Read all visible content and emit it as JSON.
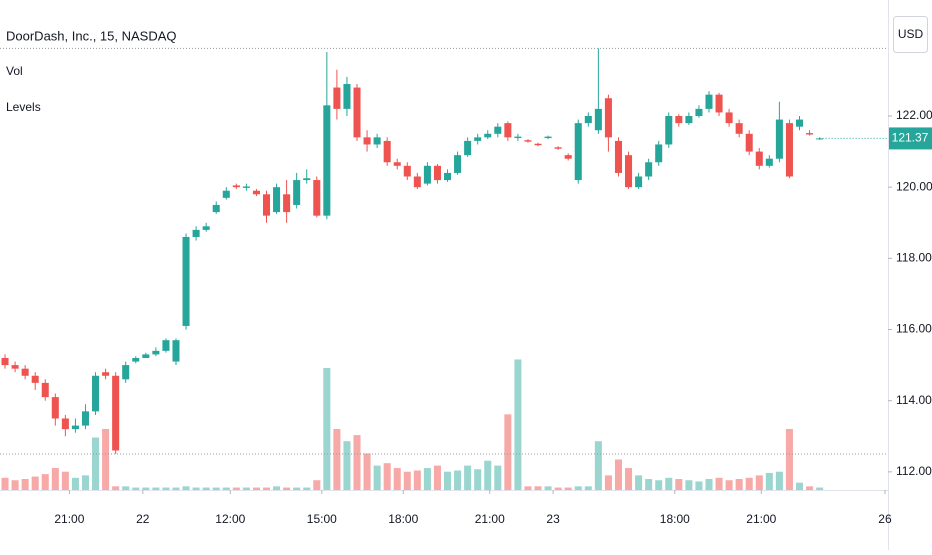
{
  "chart_data": {
    "type": "candlestick",
    "title": "DoorDash, Inc., 15, NASDAQ",
    "indicators": [
      "Vol",
      "Levels"
    ],
    "currency": "USD",
    "up_color": "#26a69a",
    "down_color": "#ef5350",
    "volume_up_color": "#9ad6cf",
    "volume_down_color": "#f7a9a7",
    "open": [
      115.2,
      115.0,
      114.9,
      114.7,
      114.5,
      114.1,
      113.5,
      113.2,
      113.3,
      113.7,
      114.8,
      114.7,
      114.6,
      115.1,
      115.2,
      115.3,
      115.4,
      115.1,
      116.1,
      118.6,
      118.8,
      119.3,
      119.7,
      120.05,
      119.98,
      119.9,
      119.8,
      119.3,
      119.8,
      119.5,
      120.2,
      120.2,
      119.2,
      122.8,
      122.2,
      122.8,
      121.4,
      121.2,
      121.3,
      120.7,
      120.6,
      120.3,
      120.1,
      120.6,
      120.2,
      120.4,
      120.9,
      121.3,
      121.4,
      121.5,
      121.8,
      121.38,
      121.32,
      121.22,
      121.38,
      121.12,
      120.9,
      120.2,
      121.8,
      121.6,
      122.5,
      121.3,
      120.9,
      120.0,
      120.3,
      120.7,
      121.2,
      122.0,
      121.8,
      122.0,
      122.2,
      122.6,
      122.1,
      121.8,
      121.5,
      121.0,
      120.6,
      120.8,
      121.8,
      121.7,
      121.52,
      121.35
    ],
    "high": [
      115.3,
      115.1,
      115.0,
      114.8,
      114.6,
      114.2,
      113.6,
      113.5,
      113.9,
      114.8,
      114.9,
      114.8,
      115.1,
      115.25,
      115.35,
      115.5,
      115.75,
      115.75,
      118.7,
      118.9,
      119.0,
      119.6,
      120.0,
      120.1,
      120.1,
      119.95,
      119.9,
      120.1,
      120.2,
      120.4,
      120.5,
      120.3,
      123.8,
      123.3,
      123.1,
      122.9,
      121.6,
      121.5,
      121.4,
      120.8,
      120.7,
      120.4,
      120.7,
      120.65,
      120.5,
      121.0,
      121.4,
      121.5,
      121.6,
      121.8,
      121.85,
      121.5,
      121.35,
      121.25,
      121.45,
      121.15,
      120.95,
      121.9,
      122.1,
      123.9,
      122.6,
      121.4,
      121.0,
      120.4,
      120.8,
      121.3,
      122.1,
      122.05,
      122.1,
      122.3,
      122.7,
      122.65,
      122.2,
      121.9,
      121.6,
      121.1,
      120.9,
      122.4,
      121.9,
      122.0,
      121.6,
      121.4
    ],
    "low": [
      114.9,
      114.8,
      114.6,
      114.3,
      114.0,
      113.3,
      113.0,
      113.1,
      113.2,
      113.6,
      114.6,
      112.5,
      114.5,
      115.05,
      115.2,
      115.25,
      115.35,
      115.0,
      116.0,
      118.5,
      118.75,
      119.25,
      119.65,
      119.95,
      119.9,
      119.75,
      119.0,
      119.25,
      119.0,
      119.4,
      120.1,
      119.15,
      119.1,
      121.9,
      122.0,
      121.3,
      121.0,
      121.1,
      120.6,
      120.5,
      120.2,
      119.95,
      120.05,
      120.1,
      120.15,
      120.35,
      120.85,
      121.2,
      121.35,
      121.4,
      121.3,
      121.3,
      121.25,
      121.15,
      121.35,
      121.05,
      120.75,
      120.1,
      121.7,
      121.5,
      121.0,
      120.3,
      119.95,
      119.95,
      120.2,
      120.6,
      121.1,
      121.7,
      121.75,
      121.95,
      122.1,
      122.0,
      121.7,
      121.4,
      120.9,
      120.5,
      120.55,
      120.7,
      120.25,
      121.6,
      121.45,
      121.33
    ],
    "close": [
      115.0,
      114.9,
      114.7,
      114.5,
      114.1,
      113.5,
      113.2,
      113.3,
      113.7,
      114.7,
      114.7,
      112.6,
      115.0,
      115.2,
      115.3,
      115.4,
      115.7,
      115.7,
      118.6,
      118.8,
      118.9,
      119.5,
      119.9,
      120.0,
      120.02,
      119.8,
      119.2,
      120.0,
      119.3,
      120.2,
      120.25,
      119.2,
      122.3,
      122.2,
      122.9,
      121.4,
      121.2,
      121.4,
      120.7,
      120.6,
      120.3,
      120.0,
      120.6,
      120.2,
      120.4,
      120.9,
      121.3,
      121.4,
      121.5,
      121.7,
      121.4,
      121.42,
      121.28,
      121.18,
      121.42,
      121.08,
      120.8,
      121.8,
      122.0,
      122.2,
      121.4,
      120.4,
      120.0,
      120.3,
      120.7,
      121.2,
      122.0,
      121.8,
      122.0,
      122.2,
      122.6,
      122.1,
      121.8,
      121.5,
      121.0,
      120.6,
      120.8,
      121.9,
      120.3,
      121.9,
      121.48,
      121.37
    ],
    "volume": [
      10,
      8,
      9,
      11,
      13,
      18,
      15,
      10,
      12,
      43,
      50,
      3,
      3,
      2,
      2,
      2,
      2,
      2,
      3,
      2,
      2,
      2,
      2,
      2,
      2,
      2,
      2,
      3,
      2,
      2,
      2,
      8,
      100,
      50,
      40,
      45,
      30,
      20,
      22,
      18,
      15,
      16,
      18,
      20,
      15,
      16,
      20,
      17,
      24,
      20,
      62,
      107,
      3,
      3,
      3,
      2,
      2,
      3,
      3,
      40,
      12,
      25,
      18,
      12,
      9,
      8,
      10,
      9,
      8,
      7,
      9,
      10,
      8,
      9,
      10,
      12,
      14,
      15,
      50,
      6,
      3,
      2
    ],
    "volume_lim": [
      0,
      100
    ],
    "xlim": [
      -0.5,
      87.8
    ],
    "xticks": [
      {
        "value": 6.4,
        "label": "21:00"
      },
      {
        "value": 13.7,
        "label": "22"
      },
      {
        "value": 22.4,
        "label": "12:00"
      },
      {
        "value": 31.5,
        "label": "15:00"
      },
      {
        "value": 39.6,
        "label": "18:00"
      },
      {
        "value": 48.2,
        "label": "21:00"
      },
      {
        "value": 54.5,
        "label": "23"
      },
      {
        "value": 66.6,
        "label": "18:00"
      },
      {
        "value": 75.2,
        "label": "21:00"
      },
      {
        "value": 87.5,
        "label": "26"
      }
    ],
    "ylim": [
      111.49,
      125.26
    ],
    "yticks": [
      {
        "value": 112,
        "label": "112.00"
      },
      {
        "value": 114,
        "label": "114.00"
      },
      {
        "value": 116,
        "label": "116.00"
      },
      {
        "value": 118,
        "label": "118.00"
      },
      {
        "value": 120,
        "label": "120.00"
      },
      {
        "value": 122,
        "label": "122.00"
      }
    ]
  }
}
